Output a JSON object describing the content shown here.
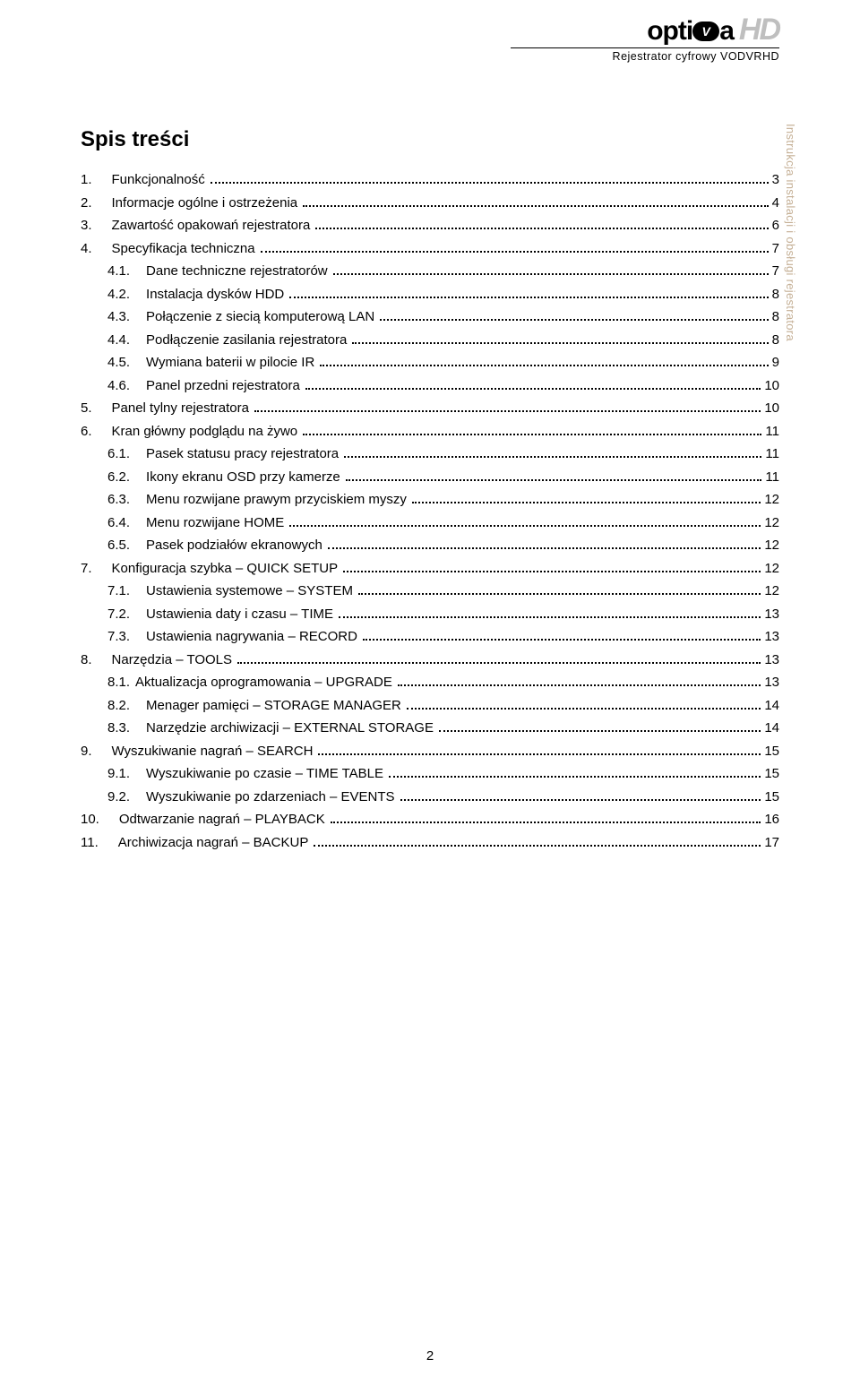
{
  "header": {
    "brand_left": "opti",
    "brand_pill": "V",
    "brand_right": "a",
    "brand_hd": "HD",
    "brand_subtitle": "Rejestrator cyfrowy VODVRHD"
  },
  "side_rail": "Instrukcja instalacji i obsługi rejestratora",
  "toc_title": "Spis treści",
  "page_number": "2",
  "toc": [
    {
      "num": "1.",
      "label": "Funkcjonalność",
      "page": "3",
      "indent": 0
    },
    {
      "num": "2.",
      "label": "Informacje ogólne i ostrzeżenia",
      "page": "4",
      "indent": 0
    },
    {
      "num": "3.",
      "label": "Zawartość opakowań rejestratora",
      "page": "6",
      "indent": 0
    },
    {
      "num": "4.",
      "label": "Specyfikacja techniczna",
      "page": "7",
      "indent": 0
    },
    {
      "num": "4.1.",
      "label": "Dane techniczne rejestratorów",
      "page": "7",
      "indent": 1
    },
    {
      "num": "4.2.",
      "label": "Instalacja dysków HDD",
      "page": "8",
      "indent": 1
    },
    {
      "num": "4.3.",
      "label": "Połączenie z siecią komputerową LAN",
      "page": "8",
      "indent": 1
    },
    {
      "num": "4.4.",
      "label": "Podłączenie zasilania rejestratora",
      "page": "8",
      "indent": 1
    },
    {
      "num": "4.5.",
      "label": "Wymiana baterii w pilocie IR",
      "page": "9",
      "indent": 1
    },
    {
      "num": "4.6.",
      "label": "Panel przedni rejestratora",
      "page": "10",
      "indent": 1
    },
    {
      "num": "5.",
      "label": "Panel tylny rejestratora",
      "page": "10",
      "indent": 0
    },
    {
      "num": "6.",
      "label": "Kran główny podglądu na żywo",
      "page": "11",
      "indent": 0
    },
    {
      "num": "6.1.",
      "label": "Pasek statusu pracy rejestratora",
      "page": "11",
      "indent": 1
    },
    {
      "num": "6.2.",
      "label": "Ikony ekranu OSD przy kamerze",
      "page": "11",
      "indent": 1
    },
    {
      "num": "6.3.",
      "label": "Menu rozwijane prawym przyciskiem myszy",
      "page": "12",
      "indent": 1
    },
    {
      "num": "6.4.",
      "label": "Menu rozwijane HOME",
      "page": "12",
      "indent": 1
    },
    {
      "num": "6.5.",
      "label": "Pasek podziałów ekranowych",
      "page": "12",
      "indent": 1
    },
    {
      "num": "7.",
      "label": "Konfiguracja szybka – QUICK SETUP",
      "page": "12",
      "indent": 0
    },
    {
      "num": "7.1.",
      "label": "Ustawienia systemowe – SYSTEM",
      "page": "12",
      "indent": 1
    },
    {
      "num": "7.2.",
      "label": "Ustawienia daty i czasu – TIME",
      "page": "13",
      "indent": 1
    },
    {
      "num": "7.3.",
      "label": "Ustawienia nagrywania – RECORD",
      "page": "13",
      "indent": 1
    },
    {
      "num": "8.",
      "label": "Narzędzia – TOOLS",
      "page": "13",
      "indent": 0
    },
    {
      "num": "8.1.",
      "label": "Aktualizacja oprogramowania – UPGRADE",
      "page": "13",
      "indent": 1,
      "nogap": true
    },
    {
      "num": "8.2.",
      "label": "Menager pamięci – STORAGE MANAGER",
      "page": "14",
      "indent": 1
    },
    {
      "num": "8.3.",
      "label": "Narzędzie archiwizacji – EXTERNAL STORAGE",
      "page": "14",
      "indent": 1
    },
    {
      "num": "9.",
      "label": "Wyszukiwanie nagrań – SEARCH",
      "page": "15",
      "indent": 0
    },
    {
      "num": "9.1.",
      "label": "Wyszukiwanie po czasie – TIME TABLE",
      "page": "15",
      "indent": 1
    },
    {
      "num": "9.2.",
      "label": "Wyszukiwanie po zdarzeniach – EVENTS",
      "page": "15",
      "indent": 1
    },
    {
      "num": "10.",
      "label": "Odtwarzanie nagrań – PLAYBACK",
      "page": "16",
      "indent": 0
    },
    {
      "num": "11.",
      "label": "Archiwizacja nagrań – BACKUP",
      "page": "17",
      "indent": 0
    }
  ]
}
